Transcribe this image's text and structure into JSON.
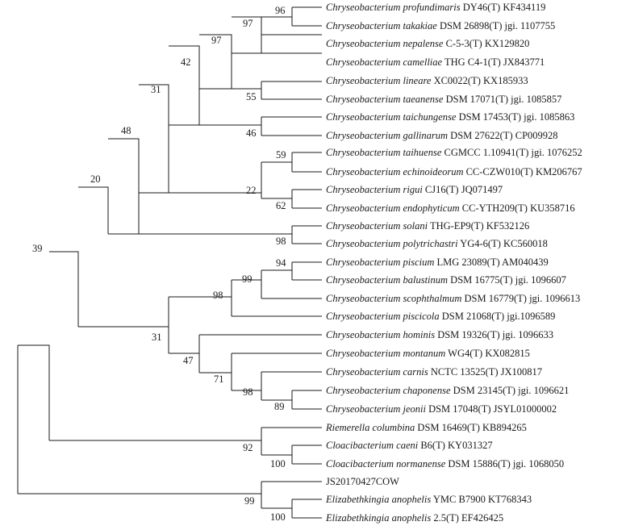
{
  "tree": {
    "taxa": [
      {
        "genus": "Chryseobacterium",
        "species": "profundimaris",
        "strain": "DY46(T) KF434119"
      },
      {
        "genus": "Chryseobacterium",
        "species": "takakiae",
        "strain": "DSM 26898(T) jgi. 1107755"
      },
      {
        "genus": "Chryseobacterium",
        "species": "nepalense",
        "strain": "C-5-3(T) KX129820"
      },
      {
        "genus": "Chryseobacterium",
        "species": "camelliae",
        "strain": "THG C4-1(T) JX843771"
      },
      {
        "genus": "Chryseobacterium",
        "species": "lineare",
        "strain": "XC0022(T) KX185933"
      },
      {
        "genus": "Chryseobacterium",
        "species": "taeanense",
        "strain": "DSM 17071(T) jgi. 1085857"
      },
      {
        "genus": "Chryseobacterium",
        "species": "taichungense",
        "strain": "DSM 17453(T) jgi. 1085863"
      },
      {
        "genus": "Chryseobacterium",
        "species": "gallinarum",
        "strain": "DSM 27622(T) CP009928"
      },
      {
        "genus": "Chryseobacterium",
        "species": "taihuense",
        "strain": "CGMCC 1.10941(T) jgi. 1076252"
      },
      {
        "genus": "Chryseobacterium",
        "species": "echinoideorum",
        "strain": "CC-CZW010(T) KM206767"
      },
      {
        "genus": "Chryseobacterium",
        "species": "rigui",
        "strain": "CJ16(T) JQ071497"
      },
      {
        "genus": "Chryseobacterium",
        "species": "endophyticum",
        "strain": "CC-YTH209(T) KU358716"
      },
      {
        "genus": "Chryseobacterium",
        "species": "solani",
        "strain": "THG-EP9(T) KF532126"
      },
      {
        "genus": "Chryseobacterium",
        "species": "polytrichastri",
        "strain": "YG4-6(T) KC560018"
      },
      {
        "genus": "Chryseobacterium",
        "species": "piscium",
        "strain": "LMG 23089(T) AM040439"
      },
      {
        "genus": "Chryseobacterium",
        "species": "balustinum",
        "strain": "DSM 16775(T) jgi. 1096607"
      },
      {
        "genus": "Chryseobacterium",
        "species": "scophthalmum",
        "strain": "DSM 16779(T) jgi. 1096613"
      },
      {
        "genus": "Chryseobacterium",
        "species": "piscicola",
        "strain": "DSM 21068(T) jgi.1096589"
      },
      {
        "genus": "Chryseobacterium",
        "species": "hominis",
        "strain": "DSM 19326(T) jgi. 1096633"
      },
      {
        "genus": "Chryseobacterium",
        "species": "montanum",
        "strain": "WG4(T) KX082815"
      },
      {
        "genus": "Chryseobacterium",
        "species": "carnis",
        "strain": "NCTC 13525(T) JX100817"
      },
      {
        "genus": "Chryseobacterium",
        "species": "chaponense",
        "strain": "DSM 23145(T) jgi. 1096621"
      },
      {
        "genus": "Chryseobacterium",
        "species": "jeonii",
        "strain": "DSM 17048(T) JSYL01000002"
      },
      {
        "genus": "Riemerella",
        "species": "columbina",
        "strain": "DSM 16469(T) KB894265"
      },
      {
        "genus": "Cloacibacterium",
        "species": "caeni",
        "strain": "B6(T) KY031327"
      },
      {
        "genus": "Cloacibacterium",
        "species": "normanense",
        "strain": "DSM 15886(T) jgi. 1068050"
      },
      {
        "genus": "",
        "species": "",
        "strain": "JS20170427COW"
      },
      {
        "genus": "Elizabethkingia",
        "species": "anophelis",
        "strain": "YMC B7900 KT768343"
      },
      {
        "genus": "Elizabethkingia",
        "species": "anophelis",
        "strain": "2.5(T) EF426425"
      }
    ],
    "bootstrap": {
      "n96": "96",
      "n97a": "97",
      "n97b": "97",
      "n42": "42",
      "n55": "55",
      "n31a": "31",
      "n46": "46",
      "n48": "48",
      "n59": "59",
      "n22": "22",
      "n62": "62",
      "n20": "20",
      "n98a": "98",
      "n39": "39",
      "n94": "94",
      "n99a": "99",
      "n98b": "98",
      "n31b": "31",
      "n47": "47",
      "n71": "71",
      "n98c": "98",
      "n89": "89",
      "n92": "92",
      "n100a": "100",
      "n99b": "99",
      "n100b": "100"
    }
  }
}
